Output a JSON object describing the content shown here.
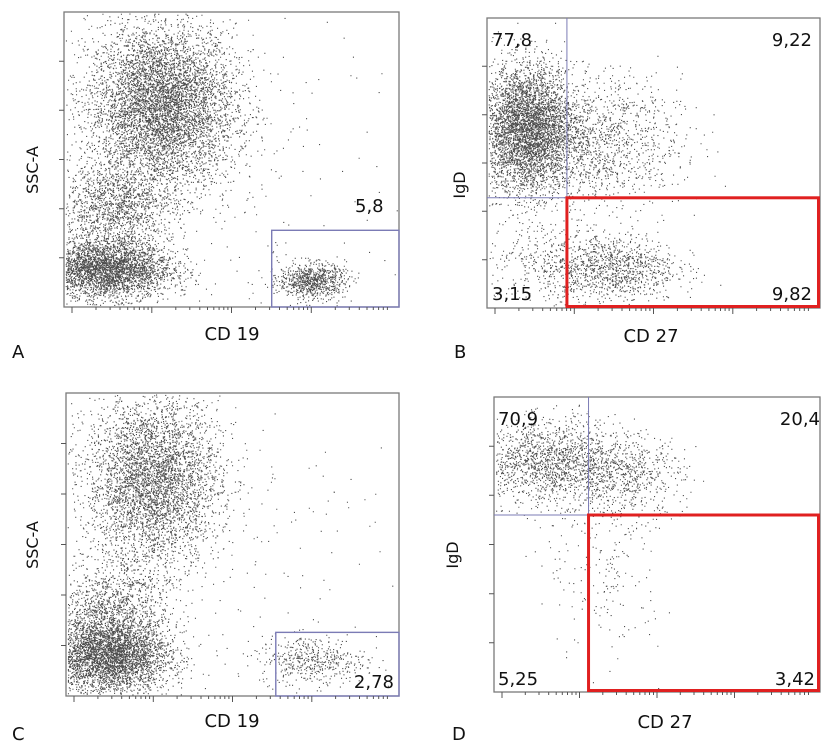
{
  "chart_data": [
    {
      "type": "scatter",
      "panel_label": "A",
      "xlabel": "CD 19",
      "ylabel": "SSC-A",
      "gate": {
        "value": "5,8",
        "color": "#7b7bb5"
      },
      "populations": [
        {
          "cx": 0.29,
          "cy": 0.68,
          "sx": 0.11,
          "sy": 0.14,
          "n": 6000
        },
        {
          "cx": 0.12,
          "cy": 0.13,
          "sx": 0.1,
          "sy": 0.05,
          "n": 3500
        },
        {
          "cx": 0.15,
          "cy": 0.34,
          "sx": 0.09,
          "sy": 0.07,
          "n": 1300
        },
        {
          "cx": 0.74,
          "cy": 0.09,
          "sx": 0.05,
          "sy": 0.03,
          "n": 800
        },
        {
          "cx": 0.55,
          "cy": 0.45,
          "sx": 0.28,
          "sy": 0.3,
          "n": 200
        }
      ],
      "gate_box": {
        "x0": 0.62,
        "x1": 1.0,
        "y0": 0.0,
        "y1": 0.26
      }
    },
    {
      "type": "scatter",
      "panel_label": "B",
      "xlabel": "CD 27",
      "ylabel": "IgD",
      "quadrants": {
        "upper_left": "77,8",
        "upper_right": "9,22",
        "lower_left": "3,15",
        "lower_right": "9,82"
      },
      "quadrant_line_color": "#7b7bb5",
      "highlight_color": "#e02020",
      "split": {
        "x": 0.24,
        "y": 0.38
      },
      "populations": [
        {
          "cx": 0.12,
          "cy": 0.62,
          "sx": 0.07,
          "sy": 0.11,
          "n": 4200
        },
        {
          "cx": 0.32,
          "cy": 0.57,
          "sx": 0.13,
          "sy": 0.11,
          "n": 1400
        },
        {
          "cx": 0.37,
          "cy": 0.14,
          "sx": 0.1,
          "sy": 0.06,
          "n": 1100
        },
        {
          "cx": 0.15,
          "cy": 0.15,
          "sx": 0.09,
          "sy": 0.07,
          "n": 250
        }
      ]
    },
    {
      "type": "scatter",
      "panel_label": "C",
      "xlabel": "CD 19",
      "ylabel": "SSC-A",
      "gate": {
        "value": "2,78",
        "color": "#7b7bb5"
      },
      "populations": [
        {
          "cx": 0.26,
          "cy": 0.71,
          "sx": 0.1,
          "sy": 0.14,
          "n": 4200
        },
        {
          "cx": 0.13,
          "cy": 0.13,
          "sx": 0.09,
          "sy": 0.06,
          "n": 3600
        },
        {
          "cx": 0.13,
          "cy": 0.28,
          "sx": 0.09,
          "sy": 0.08,
          "n": 1300
        },
        {
          "cx": 0.74,
          "cy": 0.12,
          "sx": 0.08,
          "sy": 0.04,
          "n": 450
        },
        {
          "cx": 0.55,
          "cy": 0.45,
          "sx": 0.28,
          "sy": 0.3,
          "n": 150
        }
      ],
      "gate_box": {
        "x0": 0.63,
        "x1": 1.0,
        "y0": 0.0,
        "y1": 0.21
      }
    },
    {
      "type": "scatter",
      "panel_label": "D",
      "xlabel": "CD 27",
      "ylabel": "IgD",
      "quadrants": {
        "upper_left": "70,9",
        "upper_right": "20,4",
        "lower_left": "5,25",
        "lower_right": "3,42"
      },
      "quadrant_line_color": "#7b7bb5",
      "highlight_color": "#e02020",
      "split": {
        "x": 0.29,
        "y": 0.6
      },
      "populations": [
        {
          "cx": 0.17,
          "cy": 0.78,
          "sx": 0.11,
          "sy": 0.07,
          "n": 1500
        },
        {
          "cx": 0.4,
          "cy": 0.74,
          "sx": 0.09,
          "sy": 0.07,
          "n": 600
        },
        {
          "cx": 0.34,
          "cy": 0.45,
          "sx": 0.09,
          "sy": 0.18,
          "n": 230
        }
      ]
    }
  ]
}
